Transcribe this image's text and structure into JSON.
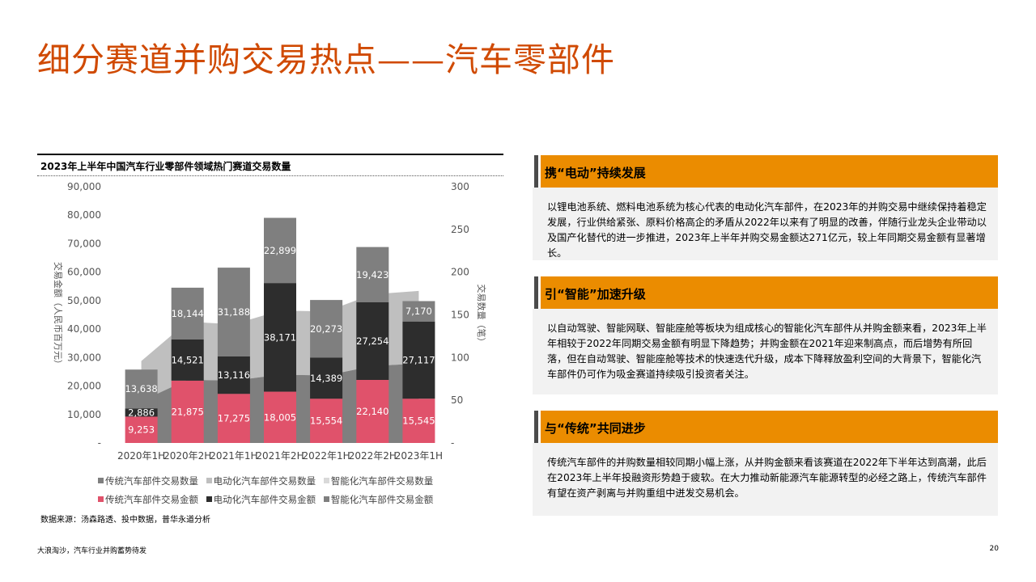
{
  "page": {
    "title": "细分赛道并购交易热点——汽车零部件",
    "footer_left": "大浪淘沙，汽车行业并购蓄势待发",
    "page_number": "20"
  },
  "chart_title": "2023年上半年中国汽车行业零部件领域热门赛道交易数量",
  "source_note": "数据来源：汤森路透、投中数据，普华永道分析",
  "legend": [
    {
      "label": "传统汽车部件交易数量",
      "color": "#7f7f7f"
    },
    {
      "label": "电动化汽车部件交易数量",
      "color": "#bfbfbf"
    },
    {
      "label": "智能化汽车部件交易数量",
      "color": "#d9d9d9"
    },
    {
      "label": "传统汽车部件交易金额",
      "color": "#e0526b"
    },
    {
      "label": "电动化汽车部件交易金额",
      "color": "#2d2d2d"
    },
    {
      "label": "智能化汽车部件交易金额",
      "color": "#7f7f7f"
    }
  ],
  "chart_data": {
    "type": "bar",
    "categories": [
      "2020年1H",
      "2020年2H",
      "2021年1H",
      "2021年2H",
      "2022年1H",
      "2022年2H",
      "2023年1H"
    ],
    "y_left_label": "交易金额（人民币百万元）",
    "y_right_label": "交易数量（笔）",
    "y_left_ticks": [
      "90,000",
      "80,000",
      "70,000",
      "60,000",
      "50,000",
      "40,000",
      "30,000",
      "20,000",
      "10,000",
      "-"
    ],
    "y_right_ticks": [
      "300",
      "250",
      "200",
      "150",
      "100",
      "50",
      "-"
    ],
    "ylim_left": [
      0,
      90000
    ],
    "ylim_right": [
      0,
      300
    ],
    "bar_series": [
      {
        "name": "传统汽车部件交易金额",
        "color": "#e0526b",
        "values": [
          9253,
          21875,
          17275,
          18005,
          15554,
          22140,
          15545
        ],
        "labels": [
          "9,253",
          "21,875",
          "17,275",
          "18,005",
          "15,554",
          "22,140",
          "15,545"
        ]
      },
      {
        "name": "电动化汽车部件交易金额",
        "color": "#2d2d2d",
        "values": [
          2886,
          14521,
          13116,
          38171,
          14389,
          27254,
          27117
        ],
        "labels": [
          "2,886",
          "14,521",
          "13,116",
          "38,171",
          "14,389",
          "27,254",
          "27,117"
        ]
      },
      {
        "name": "智能化汽车部件交易金额",
        "color": "#7f7f7f",
        "values": [
          13638,
          18144,
          31188,
          22899,
          20273,
          19423,
          7170
        ],
        "labels": [
          "13,638",
          "18,144",
          "31,188",
          "22,899",
          "20,273",
          "19,423",
          "7,170"
        ]
      }
    ],
    "area_series": [
      {
        "name": "传统汽车部件交易数量",
        "color": "#7f7f7f",
        "values": [
          49,
          74,
          73,
          80,
          79,
          90,
          93
        ]
      },
      {
        "name": "电动化汽车部件交易数量",
        "color": "#bfbfbf",
        "values": [
          47,
          68,
          66,
          75,
          75,
          84,
          85
        ]
      },
      {
        "name": "智能化汽车部件交易数量",
        "color": "#d9d9d9",
        "values": [
          0,
          0,
          0,
          0,
          0,
          0,
          0
        ]
      }
    ]
  },
  "sections": [
    {
      "heading": "携“电动”持续发展",
      "body": "以锂电池系统、燃料电池系统为核心代表的电动化汽车部件，在2023年的并购交易中继续保持着稳定发展，行业供给紧张、原料价格高企的矛盾从2022年以来有了明显的改善，伴随行业龙头企业带动以及国产化替代的进一步推进，2023年上半年并购交易金额达271亿元，较上年同期交易金额有显著增长。"
    },
    {
      "heading": "引“智能”加速升级",
      "body": "以自动驾驶、智能网联、智能座舱等板块为组成核心的智能化汽车部件从并购金额来看，2023年上半年相较于2022年同期交易金额有明显下降趋势；并购金额在2021年迎来制高点，而后增势有所回落，但在自动驾驶、智能座舱等技术的快速迭代升级，成本下降释放盈利空间的大背景下，智能化汽车部件仍可作为吸金赛道持续吸引投资者关注。"
    },
    {
      "heading": "与“传统”共同进步",
      "body": "传统汽车部件的并购数量相较同期小幅上涨，从并购金额来看该赛道在2022年下半年达到高潮，此后在2023年上半年投融资形势趋于疲软。在大力推动新能源汽车能源转型的必经之路上，传统汽车部件有望在资产剥离与并购重组中迸发交易机会。"
    }
  ]
}
